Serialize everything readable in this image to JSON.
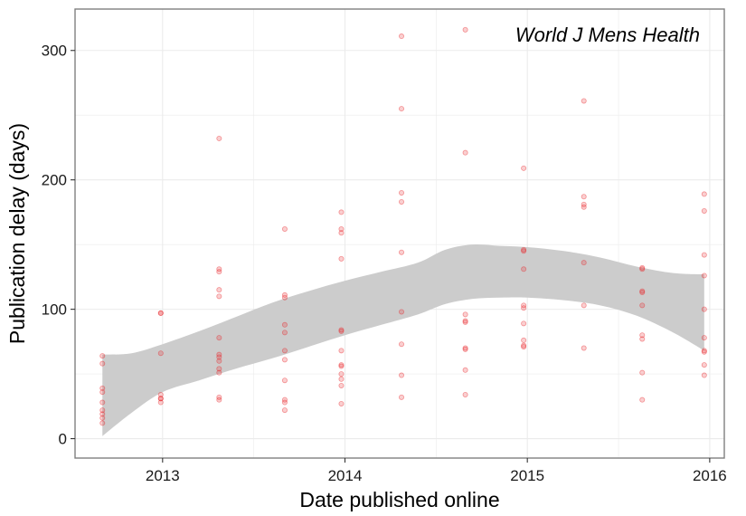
{
  "chart_data": {
    "type": "scatter",
    "title": "",
    "annotation": "World J Mens Health",
    "xlabel": "Date published online",
    "ylabel": "Publication delay (days)",
    "xlim": [
      2012.52,
      2016.08
    ],
    "ylim": [
      -15,
      332
    ],
    "x_ticks": [
      2013,
      2014,
      2015,
      2016
    ],
    "x_tick_labels": [
      "2013",
      "2014",
      "2015",
      "2016"
    ],
    "y_ticks": [
      0,
      100,
      200,
      300
    ],
    "y_tick_labels": [
      "0",
      "100",
      "200",
      "300"
    ],
    "grid": true,
    "colors": {
      "points": "#e8262b",
      "band": "#cccccc",
      "grid": "#ebebeb",
      "panel_border": "#7f7f7f"
    },
    "points": [
      {
        "x": 2012.67,
        "y": 64
      },
      {
        "x": 2012.67,
        "y": 58
      },
      {
        "x": 2012.67,
        "y": 39
      },
      {
        "x": 2012.67,
        "y": 36
      },
      {
        "x": 2012.67,
        "y": 28
      },
      {
        "x": 2012.67,
        "y": 22
      },
      {
        "x": 2012.67,
        "y": 19
      },
      {
        "x": 2012.67,
        "y": 16
      },
      {
        "x": 2012.67,
        "y": 12
      },
      {
        "x": 2012.99,
        "y": 97
      },
      {
        "x": 2012.99,
        "y": 97
      },
      {
        "x": 2012.99,
        "y": 66
      },
      {
        "x": 2012.99,
        "y": 34
      },
      {
        "x": 2012.99,
        "y": 31
      },
      {
        "x": 2012.99,
        "y": 31
      },
      {
        "x": 2012.99,
        "y": 28
      },
      {
        "x": 2013.31,
        "y": 232
      },
      {
        "x": 2013.31,
        "y": 131
      },
      {
        "x": 2013.31,
        "y": 129
      },
      {
        "x": 2013.31,
        "y": 115
      },
      {
        "x": 2013.31,
        "y": 110
      },
      {
        "x": 2013.31,
        "y": 78
      },
      {
        "x": 2013.31,
        "y": 65
      },
      {
        "x": 2013.31,
        "y": 63
      },
      {
        "x": 2013.31,
        "y": 60
      },
      {
        "x": 2013.31,
        "y": 54
      },
      {
        "x": 2013.31,
        "y": 51
      },
      {
        "x": 2013.31,
        "y": 32
      },
      {
        "x": 2013.31,
        "y": 30
      },
      {
        "x": 2013.67,
        "y": 162
      },
      {
        "x": 2013.67,
        "y": 111
      },
      {
        "x": 2013.67,
        "y": 109
      },
      {
        "x": 2013.67,
        "y": 88
      },
      {
        "x": 2013.67,
        "y": 82
      },
      {
        "x": 2013.67,
        "y": 68
      },
      {
        "x": 2013.67,
        "y": 61
      },
      {
        "x": 2013.67,
        "y": 45
      },
      {
        "x": 2013.67,
        "y": 30
      },
      {
        "x": 2013.67,
        "y": 28
      },
      {
        "x": 2013.67,
        "y": 22
      },
      {
        "x": 2013.98,
        "y": 175
      },
      {
        "x": 2013.98,
        "y": 162
      },
      {
        "x": 2013.98,
        "y": 159
      },
      {
        "x": 2013.98,
        "y": 139
      },
      {
        "x": 2013.98,
        "y": 84
      },
      {
        "x": 2013.98,
        "y": 83
      },
      {
        "x": 2013.98,
        "y": 68
      },
      {
        "x": 2013.98,
        "y": 57
      },
      {
        "x": 2013.98,
        "y": 56
      },
      {
        "x": 2013.98,
        "y": 50
      },
      {
        "x": 2013.98,
        "y": 46
      },
      {
        "x": 2013.98,
        "y": 41
      },
      {
        "x": 2013.98,
        "y": 27
      },
      {
        "x": 2014.31,
        "y": 311
      },
      {
        "x": 2014.31,
        "y": 255
      },
      {
        "x": 2014.31,
        "y": 190
      },
      {
        "x": 2014.31,
        "y": 183
      },
      {
        "x": 2014.31,
        "y": 144
      },
      {
        "x": 2014.31,
        "y": 98
      },
      {
        "x": 2014.31,
        "y": 73
      },
      {
        "x": 2014.31,
        "y": 49
      },
      {
        "x": 2014.31,
        "y": 32
      },
      {
        "x": 2014.66,
        "y": 316
      },
      {
        "x": 2014.66,
        "y": 221
      },
      {
        "x": 2014.66,
        "y": 96
      },
      {
        "x": 2014.66,
        "y": 91
      },
      {
        "x": 2014.66,
        "y": 90
      },
      {
        "x": 2014.66,
        "y": 70
      },
      {
        "x": 2014.66,
        "y": 69
      },
      {
        "x": 2014.66,
        "y": 53
      },
      {
        "x": 2014.66,
        "y": 34
      },
      {
        "x": 2014.98,
        "y": 209
      },
      {
        "x": 2014.98,
        "y": 146
      },
      {
        "x": 2014.98,
        "y": 145
      },
      {
        "x": 2014.98,
        "y": 131
      },
      {
        "x": 2014.98,
        "y": 103
      },
      {
        "x": 2014.98,
        "y": 101
      },
      {
        "x": 2014.98,
        "y": 89
      },
      {
        "x": 2014.98,
        "y": 76
      },
      {
        "x": 2014.98,
        "y": 72
      },
      {
        "x": 2014.98,
        "y": 71
      },
      {
        "x": 2015.31,
        "y": 261
      },
      {
        "x": 2015.31,
        "y": 187
      },
      {
        "x": 2015.31,
        "y": 181
      },
      {
        "x": 2015.31,
        "y": 179
      },
      {
        "x": 2015.31,
        "y": 136
      },
      {
        "x": 2015.31,
        "y": 103
      },
      {
        "x": 2015.31,
        "y": 70
      },
      {
        "x": 2015.63,
        "y": 132
      },
      {
        "x": 2015.63,
        "y": 131
      },
      {
        "x": 2015.63,
        "y": 114
      },
      {
        "x": 2015.63,
        "y": 113
      },
      {
        "x": 2015.63,
        "y": 103
      },
      {
        "x": 2015.63,
        "y": 80
      },
      {
        "x": 2015.63,
        "y": 77
      },
      {
        "x": 2015.63,
        "y": 51
      },
      {
        "x": 2015.63,
        "y": 30
      },
      {
        "x": 2015.97,
        "y": 189
      },
      {
        "x": 2015.97,
        "y": 176
      },
      {
        "x": 2015.97,
        "y": 142
      },
      {
        "x": 2015.97,
        "y": 126
      },
      {
        "x": 2015.97,
        "y": 100
      },
      {
        "x": 2015.97,
        "y": 78
      },
      {
        "x": 2015.97,
        "y": 68
      },
      {
        "x": 2015.97,
        "y": 67
      },
      {
        "x": 2015.97,
        "y": 57
      },
      {
        "x": 2015.97,
        "y": 49
      }
    ],
    "smooth_band": [
      {
        "x": 2012.67,
        "ymin": 2,
        "ymax": 65
      },
      {
        "x": 2012.83,
        "ymin": 20,
        "ymax": 66
      },
      {
        "x": 2013.0,
        "ymin": 36,
        "ymax": 73
      },
      {
        "x": 2013.2,
        "ymin": 45,
        "ymax": 83
      },
      {
        "x": 2013.4,
        "ymin": 54,
        "ymax": 94
      },
      {
        "x": 2013.6,
        "ymin": 62,
        "ymax": 105
      },
      {
        "x": 2013.8,
        "ymin": 71,
        "ymax": 114
      },
      {
        "x": 2014.0,
        "ymin": 80,
        "ymax": 122
      },
      {
        "x": 2014.2,
        "ymin": 88,
        "ymax": 129
      },
      {
        "x": 2014.4,
        "ymin": 96,
        "ymax": 136
      },
      {
        "x": 2014.55,
        "ymin": 104,
        "ymax": 146
      },
      {
        "x": 2014.7,
        "ymin": 108,
        "ymax": 150
      },
      {
        "x": 2014.85,
        "ymin": 109,
        "ymax": 149
      },
      {
        "x": 2015.0,
        "ymin": 109,
        "ymax": 148
      },
      {
        "x": 2015.2,
        "ymin": 107,
        "ymax": 145
      },
      {
        "x": 2015.4,
        "ymin": 103,
        "ymax": 140
      },
      {
        "x": 2015.6,
        "ymin": 95,
        "ymax": 133
      },
      {
        "x": 2015.8,
        "ymin": 82,
        "ymax": 128
      },
      {
        "x": 2015.97,
        "ymin": 68,
        "ymax": 127
      }
    ]
  }
}
